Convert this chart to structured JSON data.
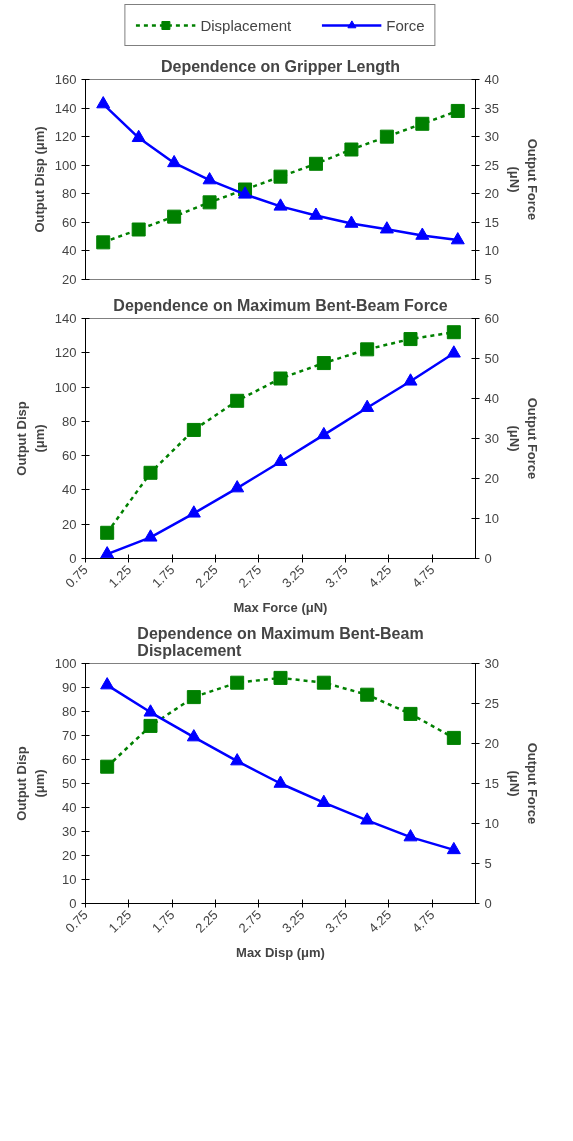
{
  "chart_data": [
    {
      "type": "line",
      "title": "Dependence on Gripper Length",
      "ylabel": "Output Disp (μm)",
      "y2label": "Output Force\n(μN)",
      "categories": [
        null,
        null,
        null,
        null,
        null,
        null,
        null,
        null,
        null,
        null,
        null
      ],
      "ylim": [
        20,
        160
      ],
      "yticks": [
        20,
        40,
        60,
        80,
        100,
        120,
        140,
        160
      ],
      "y2lim": [
        5,
        40
      ],
      "y2ticks": [
        5,
        10,
        15,
        20,
        25,
        30,
        35,
        40
      ],
      "grid": false,
      "legend": "top",
      "series": [
        {
          "name": "Displacement",
          "color": "#008000",
          "marker": "square",
          "line_style": "dashed",
          "values": [
            46,
            55,
            64,
            74,
            83,
            92,
            101,
            111,
            120,
            129,
            138
          ]
        },
        {
          "name": "Force",
          "color": "#0000ff",
          "marker": "triangle",
          "line_style": "solid",
          "axis": "y2",
          "values": [
            35.7,
            29.8,
            25.4,
            22.4,
            19.9,
            17.8,
            16.2,
            14.8,
            13.8,
            12.7,
            11.9
          ]
        }
      ]
    },
    {
      "type": "line",
      "title": "Dependence on Maximum Bent-Beam Force",
      "xlabel": "Max Force (μN)",
      "ylabel": "Output Disp\n(μm)",
      "y2label": "Output Force\n(μN)",
      "x": [
        1.0,
        1.5,
        2.0,
        2.5,
        3.0,
        3.5,
        4.0,
        4.5,
        5.0
      ],
      "xlim": [
        0.75,
        5.25
      ],
      "xticks": [
        0.75,
        1.25,
        1.75,
        2.25,
        2.75,
        3.25,
        3.75,
        4.25,
        4.75
      ],
      "ylim": [
        0,
        140
      ],
      "yticks": [
        0,
        20,
        40,
        60,
        80,
        100,
        120,
        140
      ],
      "y2lim": [
        0,
        60
      ],
      "y2ticks": [
        0,
        10,
        20,
        30,
        40,
        50,
        60
      ],
      "grid": false,
      "legend": false,
      "series": [
        {
          "color": "#008000",
          "marker": "square",
          "line_style": "dashed",
          "values": [
            15,
            50,
            75,
            92,
            105,
            114,
            122,
            128,
            132
          ]
        },
        {
          "color": "#0000ff",
          "marker": "triangle",
          "line_style": "solid",
          "axis": "y2",
          "values": [
            1.1,
            5.3,
            11.3,
            17.6,
            24.2,
            30.9,
            37.7,
            44.3,
            51.3
          ]
        }
      ]
    },
    {
      "type": "line",
      "title": "Dependence on Maximum Bent-Beam\nDisplacement",
      "xlabel": "Max Disp (μm)",
      "ylabel": "Output Disp\n(μm)",
      "y2label": "Output Force\n(μN)",
      "x": [
        1.0,
        1.5,
        2.0,
        2.5,
        3.0,
        3.5,
        4.0,
        4.5,
        5.0
      ],
      "xlim": [
        0.75,
        5.25
      ],
      "xticks": [
        0.75,
        1.25,
        1.75,
        2.25,
        2.75,
        3.25,
        3.75,
        4.25,
        4.75
      ],
      "ylim": [
        0,
        100
      ],
      "yticks": [
        0,
        10,
        20,
        30,
        40,
        50,
        60,
        70,
        80,
        90,
        100
      ],
      "y2lim": [
        0,
        30
      ],
      "y2ticks": [
        0,
        5,
        10,
        15,
        20,
        25,
        30
      ],
      "grid": false,
      "legend": false,
      "series": [
        {
          "color": "#008000",
          "marker": "square",
          "line_style": "dashed",
          "values": [
            57,
            74,
            86,
            92,
            94,
            92,
            87,
            79,
            69
          ]
        },
        {
          "color": "#0000ff",
          "marker": "triangle",
          "line_style": "solid",
          "axis": "y2",
          "values": [
            27.3,
            23.9,
            20.8,
            17.8,
            15.0,
            12.6,
            10.4,
            8.3,
            6.7
          ]
        }
      ]
    }
  ]
}
